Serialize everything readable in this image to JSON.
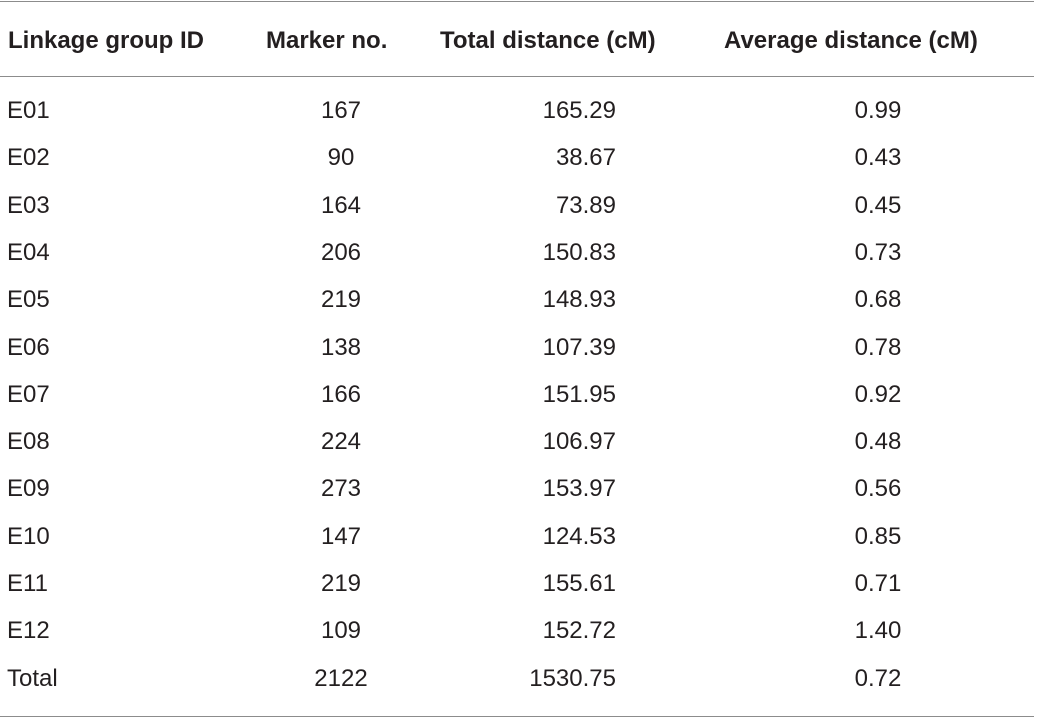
{
  "table": {
    "headers": [
      "Linkage group ID",
      "Marker no.",
      "Total distance (cM)",
      "Average distance (cM)"
    ],
    "rows": [
      [
        "E01",
        "167",
        "165.29",
        "0.99"
      ],
      [
        "E02",
        "90",
        "38.67",
        "0.43"
      ],
      [
        "E03",
        "164",
        "73.89",
        "0.45"
      ],
      [
        "E04",
        "206",
        "150.83",
        "0.73"
      ],
      [
        "E05",
        "219",
        "148.93",
        "0.68"
      ],
      [
        "E06",
        "138",
        "107.39",
        "0.78"
      ],
      [
        "E07",
        "166",
        "151.95",
        "0.92"
      ],
      [
        "E08",
        "224",
        "106.97",
        "0.48"
      ],
      [
        "E09",
        "273",
        "153.97",
        "0.56"
      ],
      [
        "E10",
        "147",
        "124.53",
        "0.85"
      ],
      [
        "E11",
        "219",
        "155.61",
        "0.71"
      ],
      [
        "E12",
        "109",
        "152.72",
        "1.40"
      ],
      [
        "Total",
        "2122",
        "1530.75",
        "0.72"
      ]
    ]
  }
}
